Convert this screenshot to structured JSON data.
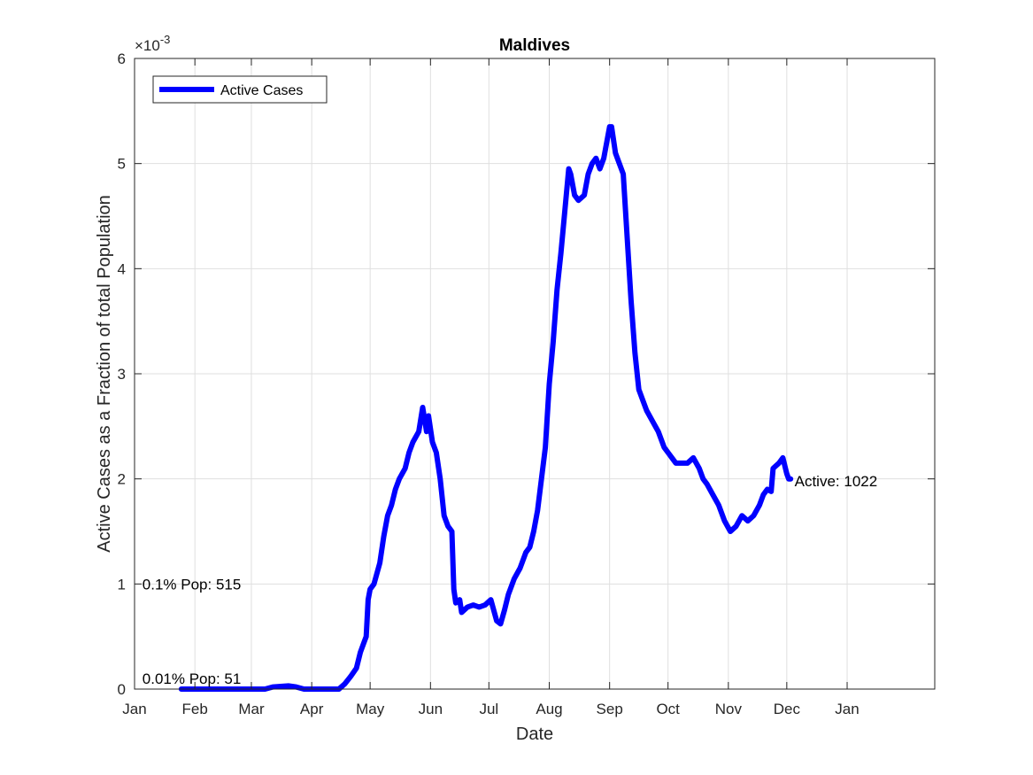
{
  "chart_data": {
    "type": "line",
    "title": "Maldives",
    "xlabel": "Date",
    "ylabel": "Active Cases as a Fraction of total Population",
    "y_exponent_label": "×10",
    "y_exponent_power": "-3",
    "y_scale": 0.001,
    "ylim": [
      0,
      6
    ],
    "yticks": [
      0,
      1,
      2,
      3,
      4,
      5,
      6
    ],
    "ytick_labels": [
      "0",
      "1",
      "2",
      "3",
      "4",
      "5",
      "6"
    ],
    "xlim": [
      "2020-01-01",
      "2021-02-15"
    ],
    "xticks": [
      "2020-01-01",
      "2020-02-01",
      "2020-03-01",
      "2020-04-01",
      "2020-05-01",
      "2020-06-01",
      "2020-07-01",
      "2020-08-01",
      "2020-09-01",
      "2020-10-01",
      "2020-11-01",
      "2020-12-01",
      "2021-01-01"
    ],
    "xtick_labels": [
      "Jan",
      "Feb",
      "Mar",
      "Apr",
      "May",
      "Jun",
      "Jul",
      "Aug",
      "Sep",
      "Oct",
      "Nov",
      "Dec",
      "Jan"
    ],
    "grid": true,
    "legend_placement": "top-left",
    "series": [
      {
        "name": "Active Cases",
        "color": "#0000ff",
        "points": [
          [
            "2020-01-25",
            0
          ],
          [
            "2020-02-15",
            0
          ],
          [
            "2020-03-08",
            0
          ],
          [
            "2020-03-12",
            0.02
          ],
          [
            "2020-03-20",
            0.03
          ],
          [
            "2020-03-24",
            0.02
          ],
          [
            "2020-03-28",
            0
          ],
          [
            "2020-04-10",
            0
          ],
          [
            "2020-04-15",
            0
          ],
          [
            "2020-04-18",
            0.05
          ],
          [
            "2020-04-21",
            0.12
          ],
          [
            "2020-04-24",
            0.2
          ],
          [
            "2020-04-26",
            0.35
          ],
          [
            "2020-04-28",
            0.45
          ],
          [
            "2020-04-29",
            0.5
          ],
          [
            "2020-04-30",
            0.85
          ],
          [
            "2020-05-01",
            0.95
          ],
          [
            "2020-05-03",
            1.0
          ],
          [
            "2020-05-06",
            1.2
          ],
          [
            "2020-05-08",
            1.45
          ],
          [
            "2020-05-10",
            1.65
          ],
          [
            "2020-05-12",
            1.75
          ],
          [
            "2020-05-14",
            1.9
          ],
          [
            "2020-05-16",
            2.0
          ],
          [
            "2020-05-19",
            2.1
          ],
          [
            "2020-05-21",
            2.25
          ],
          [
            "2020-05-23",
            2.35
          ],
          [
            "2020-05-26",
            2.45
          ],
          [
            "2020-05-28",
            2.68
          ],
          [
            "2020-05-30",
            2.45
          ],
          [
            "2020-05-31",
            2.6
          ],
          [
            "2020-06-02",
            2.35
          ],
          [
            "2020-06-04",
            2.25
          ],
          [
            "2020-06-06",
            2.0
          ],
          [
            "2020-06-08",
            1.65
          ],
          [
            "2020-06-10",
            1.55
          ],
          [
            "2020-06-12",
            1.5
          ],
          [
            "2020-06-13",
            0.95
          ],
          [
            "2020-06-14",
            0.82
          ],
          [
            "2020-06-16",
            0.85
          ],
          [
            "2020-06-17",
            0.73
          ],
          [
            "2020-06-20",
            0.78
          ],
          [
            "2020-06-23",
            0.8
          ],
          [
            "2020-06-26",
            0.78
          ],
          [
            "2020-06-29",
            0.8
          ],
          [
            "2020-07-02",
            0.85
          ],
          [
            "2020-07-05",
            0.65
          ],
          [
            "2020-07-07",
            0.62
          ],
          [
            "2020-07-09",
            0.75
          ],
          [
            "2020-07-11",
            0.9
          ],
          [
            "2020-07-14",
            1.05
          ],
          [
            "2020-07-17",
            1.15
          ],
          [
            "2020-07-20",
            1.3
          ],
          [
            "2020-07-22",
            1.35
          ],
          [
            "2020-07-24",
            1.5
          ],
          [
            "2020-07-26",
            1.7
          ],
          [
            "2020-07-28",
            2.0
          ],
          [
            "2020-07-30",
            2.3
          ],
          [
            "2020-08-01",
            2.9
          ],
          [
            "2020-08-03",
            3.3
          ],
          [
            "2020-08-05",
            3.8
          ],
          [
            "2020-08-07",
            4.15
          ],
          [
            "2020-08-09",
            4.55
          ],
          [
            "2020-08-11",
            4.95
          ],
          [
            "2020-08-12",
            4.9
          ],
          [
            "2020-08-14",
            4.7
          ],
          [
            "2020-08-16",
            4.65
          ],
          [
            "2020-08-19",
            4.7
          ],
          [
            "2020-08-21",
            4.9
          ],
          [
            "2020-08-23",
            5.0
          ],
          [
            "2020-08-25",
            5.05
          ],
          [
            "2020-08-27",
            4.95
          ],
          [
            "2020-08-29",
            5.05
          ],
          [
            "2020-09-01",
            5.35
          ],
          [
            "2020-09-02",
            5.35
          ],
          [
            "2020-09-04",
            5.1
          ],
          [
            "2020-09-06",
            5.0
          ],
          [
            "2020-09-08",
            4.9
          ],
          [
            "2020-09-10",
            4.3
          ],
          [
            "2020-09-12",
            3.7
          ],
          [
            "2020-09-14",
            3.2
          ],
          [
            "2020-09-16",
            2.85
          ],
          [
            "2020-09-18",
            2.75
          ],
          [
            "2020-09-20",
            2.65
          ],
          [
            "2020-09-23",
            2.55
          ],
          [
            "2020-09-26",
            2.45
          ],
          [
            "2020-09-29",
            2.3
          ],
          [
            "2020-10-01",
            2.25
          ],
          [
            "2020-10-03",
            2.2
          ],
          [
            "2020-10-05",
            2.15
          ],
          [
            "2020-10-08",
            2.15
          ],
          [
            "2020-10-11",
            2.15
          ],
          [
            "2020-10-14",
            2.2
          ],
          [
            "2020-10-17",
            2.1
          ],
          [
            "2020-10-19",
            2.0
          ],
          [
            "2020-10-21",
            1.95
          ],
          [
            "2020-10-24",
            1.85
          ],
          [
            "2020-10-27",
            1.75
          ],
          [
            "2020-10-30",
            1.6
          ],
          [
            "2020-11-02",
            1.5
          ],
          [
            "2020-11-05",
            1.55
          ],
          [
            "2020-11-08",
            1.65
          ],
          [
            "2020-11-11",
            1.6
          ],
          [
            "2020-11-14",
            1.65
          ],
          [
            "2020-11-17",
            1.75
          ],
          [
            "2020-11-19",
            1.85
          ],
          [
            "2020-11-21",
            1.9
          ],
          [
            "2020-11-23",
            1.88
          ],
          [
            "2020-11-24",
            2.1
          ],
          [
            "2020-11-27",
            2.15
          ],
          [
            "2020-11-29",
            2.2
          ],
          [
            "2020-12-01",
            2.05
          ],
          [
            "2020-12-02",
            2.0
          ],
          [
            "2020-12-03",
            2.0
          ]
        ]
      }
    ],
    "annotations": [
      {
        "text": "Active: 1022",
        "x": "2020-12-05",
        "y": 1.98,
        "anchor": "start"
      },
      {
        "text": "0.1% Pop: 515",
        "x": "2020-01-05",
        "y": 1.0,
        "anchor": "start"
      },
      {
        "text": "0.01% Pop: 51",
        "x": "2020-01-05",
        "y": 0.1,
        "anchor": "start"
      }
    ]
  }
}
